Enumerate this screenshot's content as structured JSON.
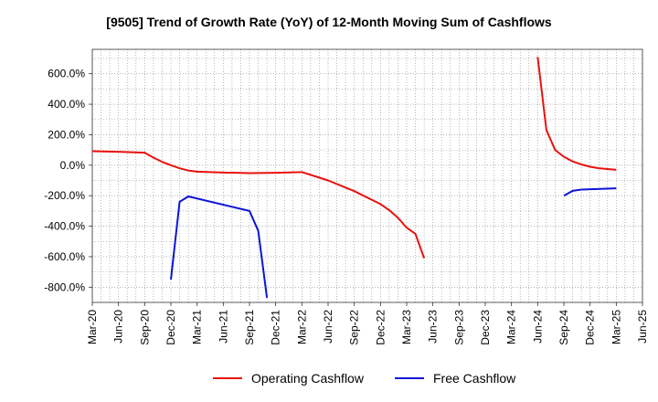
{
  "chart_data": {
    "type": "line",
    "title": "[9505]  Trend of Growth Rate (YoY) of 12-Month Moving Sum of Cashflows",
    "xlabel": "",
    "ylabel": "",
    "x_ticks": [
      "Mar-20",
      "Jun-20",
      "Sep-20",
      "Dec-20",
      "Mar-21",
      "Jun-21",
      "Sep-21",
      "Dec-21",
      "Mar-22",
      "Jun-22",
      "Sep-22",
      "Dec-22",
      "Mar-23",
      "Jun-23",
      "Sep-23",
      "Dec-23",
      "Mar-24",
      "Jun-24",
      "Sep-24",
      "Dec-24",
      "Mar-25",
      "Jun-25"
    ],
    "y_ticks": [
      600,
      400,
      200,
      0,
      -200,
      -400,
      -600,
      -800
    ],
    "y_tick_labels": [
      "600.0%",
      "400.0%",
      "200.0%",
      "0.0%",
      "-200.0%",
      "-400.0%",
      "-600.0%",
      "-800.0%"
    ],
    "ylim": [
      -900,
      760
    ],
    "grid": true,
    "legend_position": "bottom",
    "series": [
      {
        "name": "Operating Cashflow",
        "color": "#e8120e",
        "points": [
          [
            "Mar-20",
            92
          ],
          [
            "Jun-20",
            88
          ],
          [
            "Sep-20",
            82
          ],
          [
            "Oct-20",
            50
          ],
          [
            "Nov-20",
            22
          ],
          [
            "Dec-20",
            0
          ],
          [
            "Jan-21",
            -20
          ],
          [
            "Feb-21",
            -35
          ],
          [
            "Mar-21",
            -42
          ],
          [
            "Jun-21",
            -48
          ],
          [
            "Sep-21",
            -52
          ],
          [
            "Dec-21",
            -50
          ],
          [
            "Mar-22",
            -45
          ],
          [
            "Jun-22",
            -100
          ],
          [
            "Sep-22",
            -170
          ],
          [
            "Dec-22",
            -255
          ],
          [
            "Jan-23",
            -295
          ],
          [
            "Feb-23",
            -345
          ],
          [
            "Mar-23",
            -410
          ],
          [
            "Apr-23",
            -450
          ],
          [
            "May-23",
            -610
          ],
          null,
          [
            "Jun-24",
            710
          ],
          [
            "Jul-24",
            230
          ],
          [
            "Aug-24",
            100
          ],
          [
            "Sep-24",
            55
          ],
          [
            "Oct-24",
            25
          ],
          [
            "Nov-24",
            5
          ],
          [
            "Dec-24",
            -10
          ],
          [
            "Jan-25",
            -20
          ],
          [
            "Mar-25",
            -30
          ]
        ]
      },
      {
        "name": "Free Cashflow",
        "color": "#0a14d6",
        "points": [
          [
            "Dec-20",
            -750
          ],
          [
            "Jan-21",
            -240
          ],
          [
            "Feb-21",
            -205
          ],
          [
            "Sep-21",
            -300
          ],
          [
            "Oct-21",
            -430
          ],
          [
            "Nov-21",
            -870
          ],
          null,
          [
            "Sep-24",
            -200
          ],
          [
            "Oct-24",
            -168
          ],
          [
            "Nov-24",
            -160
          ],
          [
            "Mar-25",
            -152
          ]
        ]
      }
    ]
  }
}
